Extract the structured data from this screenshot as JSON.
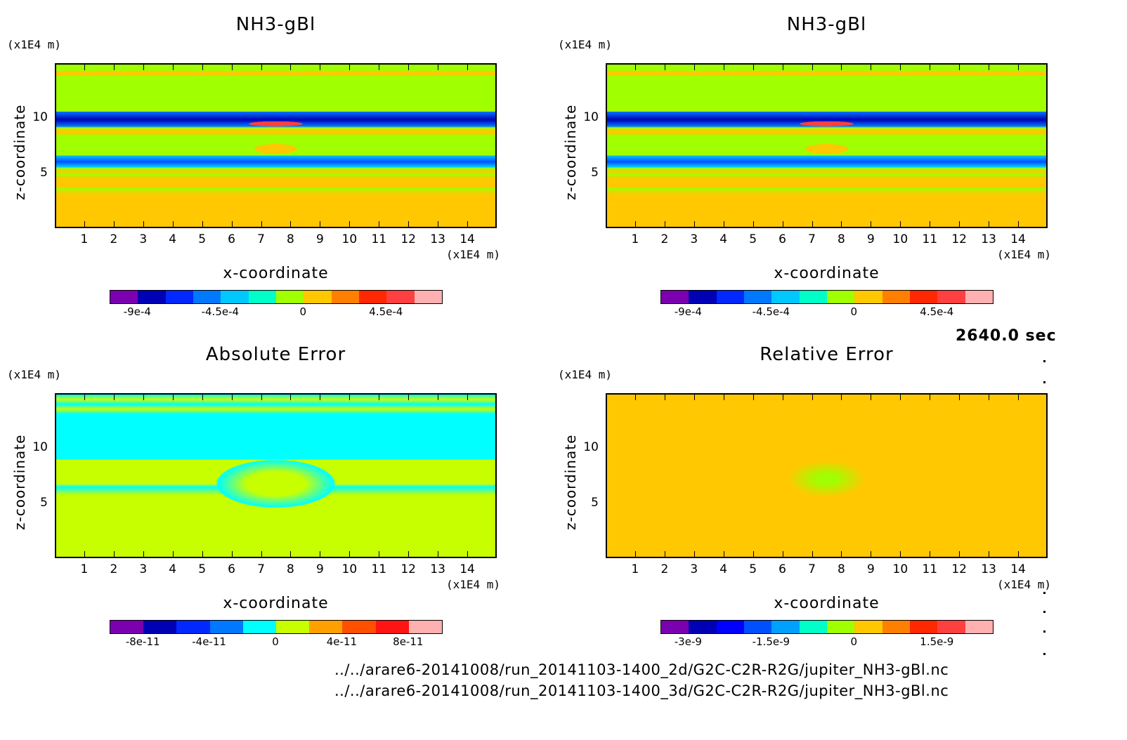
{
  "time_label": "2640.0 sec",
  "file_paths": [
    "../../arare6-20141008/run_20141103-1400_2d/G2C-C2R-R2G/jupiter_NH3-gBl.nc",
    "../../arare6-20141008/run_20141103-1400_3d/G2C-C2R-R2G/jupiter_NH3-gBl.nc"
  ],
  "chart_data": [
    {
      "type": "heatmap",
      "title": "NH3-gBl",
      "xlabel": "x-coordinate",
      "ylabel": "z-coordinate",
      "x_unit": "(x1E4 m)",
      "y_unit": "(x1E4 m)",
      "xticks": [
        "1",
        "2",
        "3",
        "4",
        "5",
        "6",
        "7",
        "8",
        "9",
        "10",
        "11",
        "12",
        "13",
        "14"
      ],
      "yticks": [
        "5",
        "10"
      ],
      "xlim": [
        0,
        15
      ],
      "ylim": [
        0,
        15
      ],
      "colorbar": {
        "colors": [
          "#7a00b0",
          "#0000b4",
          "#0028ff",
          "#0078ff",
          "#00c8ff",
          "#00ffc8",
          "#a0ff00",
          "#ffc800",
          "#ff8000",
          "#ff2800",
          "#ff4040",
          "#ffb0b0"
        ],
        "tick_labels": [
          "-9e-4",
          "-4.5e-4",
          "0",
          "4.5e-4"
        ],
        "tick_values": [
          -0.0009,
          -0.00045,
          0,
          0.00045
        ],
        "range": [
          -0.00105,
          0.00075
        ]
      }
    },
    {
      "type": "heatmap",
      "title": "NH3-gBl",
      "xlabel": "x-coordinate",
      "ylabel": "z-coordinate",
      "x_unit": "(x1E4 m)",
      "y_unit": "(x1E4 m)",
      "xticks": [
        "1",
        "2",
        "3",
        "4",
        "5",
        "6",
        "7",
        "8",
        "9",
        "10",
        "11",
        "12",
        "13",
        "14"
      ],
      "yticks": [
        "5",
        "10"
      ],
      "xlim": [
        0,
        15
      ],
      "ylim": [
        0,
        15
      ],
      "colorbar": {
        "colors": [
          "#7a00b0",
          "#0000b4",
          "#0028ff",
          "#0078ff",
          "#00c8ff",
          "#00ffc8",
          "#a0ff00",
          "#ffc800",
          "#ff8000",
          "#ff2800",
          "#ff4040",
          "#ffb0b0"
        ],
        "tick_labels": [
          "-9e-4",
          "-4.5e-4",
          "0",
          "4.5e-4"
        ],
        "tick_values": [
          -0.0009,
          -0.00045,
          0,
          0.00045
        ],
        "range": [
          -0.00105,
          0.00075
        ]
      }
    },
    {
      "type": "heatmap",
      "title": "Absolute Error",
      "xlabel": "x-coordinate",
      "ylabel": "z-coordinate",
      "x_unit": "(x1E4 m)",
      "y_unit": "(x1E4 m)",
      "xticks": [
        "1",
        "2",
        "3",
        "4",
        "5",
        "6",
        "7",
        "8",
        "9",
        "10",
        "11",
        "12",
        "13",
        "14"
      ],
      "yticks": [
        "5",
        "10"
      ],
      "xlim": [
        0,
        15
      ],
      "ylim": [
        0,
        15
      ],
      "colorbar": {
        "colors": [
          "#7a00b0",
          "#0000b4",
          "#0028ff",
          "#0078ff",
          "#00ffff",
          "#c8ff00",
          "#ffa000",
          "#ff5000",
          "#ff1414",
          "#ffb0b0"
        ],
        "tick_labels": [
          "-8e-11",
          "-4e-11",
          "0",
          "4e-11",
          "8e-11"
        ],
        "tick_values": [
          -8e-11,
          -4e-11,
          0,
          4e-11,
          8e-11
        ],
        "range": [
          -1e-10,
          1e-10
        ]
      }
    },
    {
      "type": "heatmap",
      "title": "Relative Error",
      "xlabel": "x-coordinate",
      "ylabel": "z-coordinate",
      "x_unit": "(x1E4 m)",
      "y_unit": "(x1E4 m)",
      "xticks": [
        "1",
        "2",
        "3",
        "4",
        "5",
        "6",
        "7",
        "8",
        "9",
        "10",
        "11",
        "12",
        "13",
        "14"
      ],
      "yticks": [
        "5",
        "10"
      ],
      "xlim": [
        0,
        15
      ],
      "ylim": [
        0,
        15
      ],
      "colorbar": {
        "colors": [
          "#7a00b0",
          "#0000b4",
          "#0000ff",
          "#0050ff",
          "#00a0ff",
          "#00ffc8",
          "#a0ff00",
          "#ffc800",
          "#ff8000",
          "#ff2800",
          "#ff4040",
          "#ffb0b0"
        ],
        "tick_labels": [
          "-3e-9",
          "-1.5e-9",
          "0",
          "1.5e-9"
        ],
        "tick_values": [
          -3e-09,
          -1.5e-09,
          0,
          1.5e-09
        ],
        "range": [
          -3.5e-09,
          2.5e-09
        ]
      }
    }
  ]
}
